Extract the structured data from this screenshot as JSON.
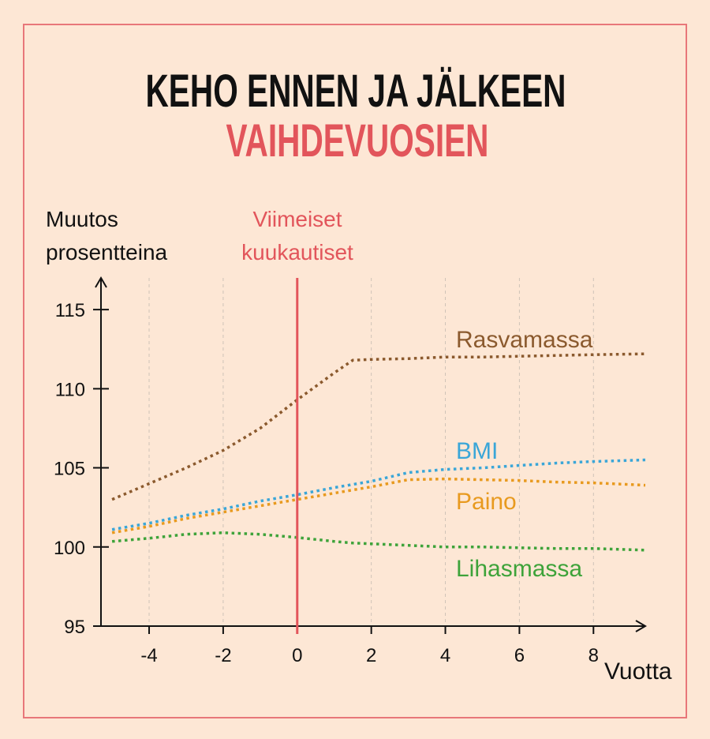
{
  "chart_data": {
    "type": "line",
    "title": "KEHO ENNEN JA JÄLKEEN",
    "subtitle": "VAIHDEVUOSIEN",
    "y_label": "Muutos prosentteina",
    "x_label": "Vuotta",
    "annotation": {
      "x": 0,
      "label": "Viimeiset kuukautiset",
      "color": "#e2555b"
    },
    "x": [
      -5,
      -4,
      -3,
      -2,
      -1,
      0,
      1,
      1.5,
      2,
      3,
      4,
      5,
      6,
      7,
      8,
      9.4
    ],
    "series": [
      {
        "name": "Rasvamassa",
        "color": "#8b5a2e",
        "values": [
          103.0,
          104.0,
          105.0,
          106.1,
          107.5,
          109.3,
          111.0,
          111.8,
          111.85,
          111.9,
          112.0,
          112.0,
          112.05,
          112.1,
          112.15,
          112.2
        ]
      },
      {
        "name": "BMI",
        "color": "#3aa6d8",
        "values": [
          101.1,
          101.5,
          102.0,
          102.4,
          102.9,
          103.3,
          103.75,
          103.95,
          104.15,
          104.7,
          104.9,
          105.0,
          105.15,
          105.3,
          105.4,
          105.5
        ]
      },
      {
        "name": "Paino",
        "color": "#e89a1f",
        "values": [
          100.9,
          101.3,
          101.8,
          102.2,
          102.6,
          103.0,
          103.4,
          103.6,
          103.8,
          104.25,
          104.3,
          104.25,
          104.2,
          104.1,
          104.05,
          103.9
        ]
      },
      {
        "name": "Lihasmassa",
        "color": "#3ea33a",
        "values": [
          100.35,
          100.55,
          100.8,
          100.9,
          100.8,
          100.6,
          100.35,
          100.25,
          100.2,
          100.1,
          100.0,
          100.0,
          99.95,
          99.9,
          99.9,
          99.8
        ]
      }
    ],
    "xlim": [
      -5.3,
      9.4
    ],
    "ylim": [
      95,
      117
    ],
    "xticks": [
      -4,
      -2,
      0,
      2,
      4,
      6,
      8
    ],
    "yticks": [
      95,
      100,
      105,
      110,
      115
    ],
    "grid": true
  }
}
